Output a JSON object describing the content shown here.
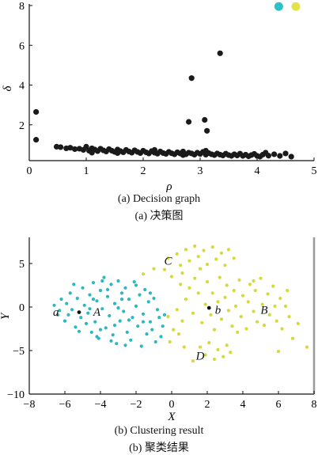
{
  "captions": {
    "a_en": "(a) Decision graph",
    "a_cn": "(a) 决策图",
    "b_en": "(b) Clustering result",
    "b_cn": "(b) 聚类结果"
  },
  "chart_data": [
    {
      "type": "scatter",
      "title": "",
      "xlabel": "ρ",
      "ylabel": "δ",
      "xlim": [
        0,
        5
      ],
      "ylim": [
        0.2,
        8
      ],
      "xticks": [
        0,
        1,
        2,
        3,
        4,
        5
      ],
      "yticks": [
        2,
        4,
        6,
        8
      ],
      "grid": false,
      "colors": {
        "points": "#1a1a1a",
        "center_cyan": "#2cc0c8",
        "center_yellow": "#e2e24a"
      },
      "series": [
        {
          "role": "points",
          "points": [
            [
              0.12,
              2.65
            ],
            [
              0.12,
              1.25
            ],
            [
              0.48,
              0.9
            ],
            [
              0.55,
              0.88
            ],
            [
              0.65,
              0.82
            ],
            [
              0.72,
              0.85
            ],
            [
              0.8,
              0.78
            ],
            [
              0.88,
              0.8
            ],
            [
              0.95,
              0.74
            ],
            [
              1.0,
              0.9
            ],
            [
              1.05,
              0.7
            ],
            [
              1.1,
              0.82
            ],
            [
              1.15,
              0.76
            ],
            [
              1.2,
              0.68
            ],
            [
              1.25,
              0.8
            ],
            [
              1.3,
              0.72
            ],
            [
              1.35,
              0.66
            ],
            [
              1.4,
              0.78
            ],
            [
              1.45,
              0.7
            ],
            [
              1.5,
              0.64
            ],
            [
              1.55,
              0.76
            ],
            [
              1.6,
              0.68
            ],
            [
              1.65,
              0.62
            ],
            [
              1.7,
              0.74
            ],
            [
              1.75,
              0.66
            ],
            [
              1.8,
              0.6
            ],
            [
              1.85,
              0.72
            ],
            [
              1.9,
              0.64
            ],
            [
              1.95,
              0.58
            ],
            [
              2.0,
              0.7
            ],
            [
              2.05,
              0.62
            ],
            [
              2.1,
              0.56
            ],
            [
              2.15,
              0.68
            ],
            [
              2.2,
              0.6
            ],
            [
              2.25,
              0.55
            ],
            [
              2.3,
              0.66
            ],
            [
              2.35,
              0.58
            ],
            [
              2.4,
              0.54
            ],
            [
              2.45,
              0.64
            ],
            [
              2.5,
              0.57
            ],
            [
              2.55,
              0.52
            ],
            [
              2.6,
              0.62
            ],
            [
              2.65,
              0.56
            ],
            [
              2.7,
              0.66
            ],
            [
              2.75,
              0.52
            ],
            [
              2.8,
              0.6
            ],
            [
              2.85,
              0.56
            ],
            [
              2.9,
              0.5
            ],
            [
              2.95,
              0.6
            ],
            [
              3.0,
              0.54
            ],
            [
              3.05,
              0.64
            ],
            [
              3.1,
              0.5
            ],
            [
              3.15,
              0.58
            ],
            [
              3.2,
              0.52
            ],
            [
              3.25,
              0.48
            ],
            [
              3.3,
              0.56
            ],
            [
              3.35,
              0.5
            ],
            [
              3.4,
              0.46
            ],
            [
              3.45,
              0.55
            ],
            [
              3.5,
              0.48
            ],
            [
              3.55,
              0.44
            ],
            [
              3.6,
              0.52
            ],
            [
              3.65,
              0.46
            ],
            [
              3.7,
              0.55
            ],
            [
              3.75,
              0.44
            ],
            [
              3.8,
              0.5
            ],
            [
              3.85,
              0.42
            ],
            [
              3.9,
              0.48
            ],
            [
              3.95,
              0.54
            ],
            [
              4.0,
              0.44
            ],
            [
              4.05,
              0.4
            ],
            [
              4.1,
              0.5
            ],
            [
              4.15,
              0.6
            ],
            [
              4.2,
              0.45
            ],
            [
              4.3,
              0.52
            ],
            [
              4.4,
              0.44
            ],
            [
              4.5,
              0.56
            ],
            [
              4.6,
              0.4
            ],
            [
              1.1,
              0.6
            ],
            [
              1.55,
              0.58
            ],
            [
              2.2,
              0.74
            ],
            [
              2.7,
              0.48
            ],
            [
              3.1,
              0.7
            ],
            [
              2.85,
              4.35
            ],
            [
              3.35,
              5.6
            ],
            [
              2.8,
              2.15
            ],
            [
              3.08,
              2.25
            ],
            [
              3.12,
              1.7
            ]
          ]
        },
        {
          "role": "legend-markers",
          "points": [
            [
              4.38,
              7.95
            ],
            [
              4.68,
              7.95
            ]
          ]
        }
      ]
    },
    {
      "type": "scatter",
      "title": "",
      "xlabel": "X",
      "ylabel": "Y",
      "xlim": [
        -8,
        8
      ],
      "ylim": [
        -10,
        8
      ],
      "xticks": [
        -8,
        -6,
        -4,
        -2,
        0,
        2,
        4,
        6,
        8
      ],
      "yticks": [
        -10,
        -5,
        0,
        5
      ],
      "grid": false,
      "annotations": [
        {
          "text": "a",
          "x": -6.5,
          "y": -0.55
        },
        {
          "text": "A",
          "x": -4.2,
          "y": -0.55
        },
        {
          "text": "b",
          "x": 2.6,
          "y": -0.3
        },
        {
          "text": "B",
          "x": 5.2,
          "y": -0.3
        },
        {
          "text": "C",
          "x": -0.2,
          "y": 5.3
        },
        {
          "text": "D",
          "x": 1.6,
          "y": -5.6
        }
      ],
      "centers": [
        [
          -5.2,
          -0.6
        ],
        [
          2.1,
          -0.1
        ]
      ],
      "colors": {
        "cyan": "#2bb8c0",
        "yellow": "#d6d93a",
        "center": "#111111"
      },
      "series": [
        {
          "role": "cyan",
          "points": [
            [
              -6.6,
              0.2
            ],
            [
              -6.4,
              -0.9
            ],
            [
              -6.2,
              0.9
            ],
            [
              -6.0,
              -1.6
            ],
            [
              -5.9,
              0.4
            ],
            [
              -5.7,
              1.6
            ],
            [
              -5.6,
              -0.3
            ],
            [
              -5.4,
              -2.3
            ],
            [
              -5.3,
              1.0
            ],
            [
              -5.1,
              -1.2
            ],
            [
              -5.0,
              2.2
            ],
            [
              -4.9,
              0.2
            ],
            [
              -4.7,
              -0.7
            ],
            [
              -4.6,
              1.4
            ],
            [
              -4.5,
              -2.9
            ],
            [
              -4.4,
              2.8
            ],
            [
              -4.3,
              -1.7
            ],
            [
              -4.2,
              0.7
            ],
            [
              -4.1,
              -3.6
            ],
            [
              -4.0,
              1.9
            ],
            [
              -3.9,
              -0.2
            ],
            [
              -3.8,
              3.4
            ],
            [
              -3.7,
              -2.4
            ],
            [
              -3.6,
              1.2
            ],
            [
              -3.5,
              -1.0
            ],
            [
              -3.4,
              2.6
            ],
            [
              -3.3,
              -3.2
            ],
            [
              -3.2,
              0.4
            ],
            [
              -3.1,
              -4.2
            ],
            [
              -3.0,
              3.0
            ],
            [
              -2.9,
              -1.6
            ],
            [
              -2.8,
              1.6
            ],
            [
              -2.7,
              -0.5
            ],
            [
              -2.6,
              2.2
            ],
            [
              -2.5,
              -2.9
            ],
            [
              -2.4,
              0.9
            ],
            [
              -2.3,
              -3.8
            ],
            [
              -2.2,
              -1.2
            ],
            [
              -2.1,
              2.9
            ],
            [
              -2.0,
              0.1
            ],
            [
              -1.9,
              -2.2
            ],
            [
              -1.8,
              1.4
            ],
            [
              -1.7,
              -4.5
            ],
            [
              -1.6,
              -0.8
            ],
            [
              -1.5,
              2.0
            ],
            [
              -1.4,
              -3.1
            ],
            [
              -1.3,
              0.6
            ],
            [
              -1.2,
              -1.7
            ],
            [
              -1.1,
              -2.6
            ],
            [
              -1.0,
              1.0
            ],
            [
              -0.9,
              -4.0
            ],
            [
              -0.8,
              -0.3
            ],
            [
              -0.7,
              -1.2
            ],
            [
              -0.6,
              -3.4
            ],
            [
              -0.5,
              -2.2
            ],
            [
              -0.4,
              -0.9
            ],
            [
              -6.3,
              -0.4
            ],
            [
              -5.8,
              -0.9
            ],
            [
              -5.5,
              2.6
            ],
            [
              -5.2,
              -2.8
            ],
            [
              -4.8,
              -1.9
            ],
            [
              -4.4,
              0.9
            ],
            [
              -4.0,
              -2.6
            ],
            [
              -3.6,
              2.0
            ],
            [
              -3.2,
              -2.1
            ],
            [
              -2.8,
              0.9
            ],
            [
              -2.4,
              -1.5
            ],
            [
              -2.0,
              2.5
            ],
            [
              -1.6,
              -1.7
            ],
            [
              -1.2,
              1.6
            ],
            [
              -3.0,
              -0.1
            ],
            [
              -4.6,
              -0.2
            ],
            [
              -3.4,
              -3.9
            ],
            [
              -2.6,
              -4.4
            ],
            [
              -3.9,
              3.0
            ],
            [
              -4.2,
              -3.4
            ]
          ]
        },
        {
          "role": "yellow",
          "points": [
            [
              -0.4,
              4.3
            ],
            [
              -0.2,
              5.6
            ],
            [
              0.0,
              3.5
            ],
            [
              0.3,
              6.1
            ],
            [
              0.5,
              4.8
            ],
            [
              0.8,
              6.6
            ],
            [
              1.0,
              5.3
            ],
            [
              1.3,
              7.0
            ],
            [
              1.5,
              5.8
            ],
            [
              1.8,
              6.5
            ],
            [
              2.0,
              4.9
            ],
            [
              2.3,
              6.9
            ],
            [
              2.5,
              5.5
            ],
            [
              2.8,
              6.2
            ],
            [
              3.0,
              4.8
            ],
            [
              3.2,
              6.6
            ],
            [
              3.5,
              5.6
            ],
            [
              -1.0,
              4.4
            ],
            [
              -1.6,
              3.8
            ],
            [
              0.6,
              3.9
            ],
            [
              1.6,
              4.4
            ],
            [
              0.5,
              2.6
            ],
            [
              0.8,
              0.9
            ],
            [
              1.0,
              2.2
            ],
            [
              1.2,
              -0.7
            ],
            [
              1.3,
              3.3
            ],
            [
              1.5,
              1.6
            ],
            [
              1.7,
              -1.8
            ],
            [
              1.9,
              0.3
            ],
            [
              2.0,
              2.9
            ],
            [
              2.2,
              -0.9
            ],
            [
              2.3,
              1.6
            ],
            [
              2.4,
              -2.6
            ],
            [
              2.6,
              0.6
            ],
            [
              2.7,
              3.4
            ],
            [
              2.8,
              -1.4
            ],
            [
              3.0,
              1.1
            ],
            [
              3.1,
              2.5
            ],
            [
              3.2,
              -0.4
            ],
            [
              3.4,
              -2.2
            ],
            [
              3.5,
              1.9
            ],
            [
              3.6,
              0.1
            ],
            [
              3.8,
              3.1
            ],
            [
              3.9,
              -1.1
            ],
            [
              4.0,
              1.3
            ],
            [
              4.2,
              -2.5
            ],
            [
              4.3,
              0.6
            ],
            [
              4.4,
              2.6
            ],
            [
              4.6,
              -0.5
            ],
            [
              4.7,
              1.9
            ],
            [
              4.8,
              -1.7
            ],
            [
              5.0,
              3.3
            ],
            [
              5.1,
              0.3
            ],
            [
              5.2,
              -2.1
            ],
            [
              5.4,
              1.5
            ],
            [
              5.5,
              -0.9
            ],
            [
              5.7,
              2.4
            ],
            [
              5.8,
              0.1
            ],
            [
              5.9,
              -1.6
            ],
            [
              6.1,
              1.0
            ],
            [
              6.2,
              -2.5
            ],
            [
              6.4,
              0.1
            ],
            [
              6.5,
              1.9
            ],
            [
              6.6,
              -1.1
            ],
            [
              6.8,
              -3.6
            ],
            [
              7.1,
              -1.9
            ],
            [
              6.0,
              -5.1
            ],
            [
              7.6,
              -4.6
            ],
            [
              1.6,
              -4.6
            ],
            [
              1.9,
              -5.5
            ],
            [
              2.1,
              -4.1
            ],
            [
              2.4,
              -6.0
            ],
            [
              2.6,
              -4.9
            ],
            [
              2.9,
              -5.7
            ],
            [
              3.1,
              -4.4
            ],
            [
              3.3,
              -5.2
            ],
            [
              0.7,
              -4.6
            ],
            [
              1.2,
              -6.2
            ],
            [
              -0.2,
              -1.1
            ],
            [
              0.1,
              -2.6
            ],
            [
              0.3,
              -0.3
            ],
            [
              0.4,
              -3.1
            ],
            [
              0.6,
              -1.6
            ],
            [
              -0.1,
              -4.0
            ],
            [
              4.6,
              3.0
            ],
            [
              3.7,
              -2.9
            ]
          ]
        }
      ]
    }
  ]
}
